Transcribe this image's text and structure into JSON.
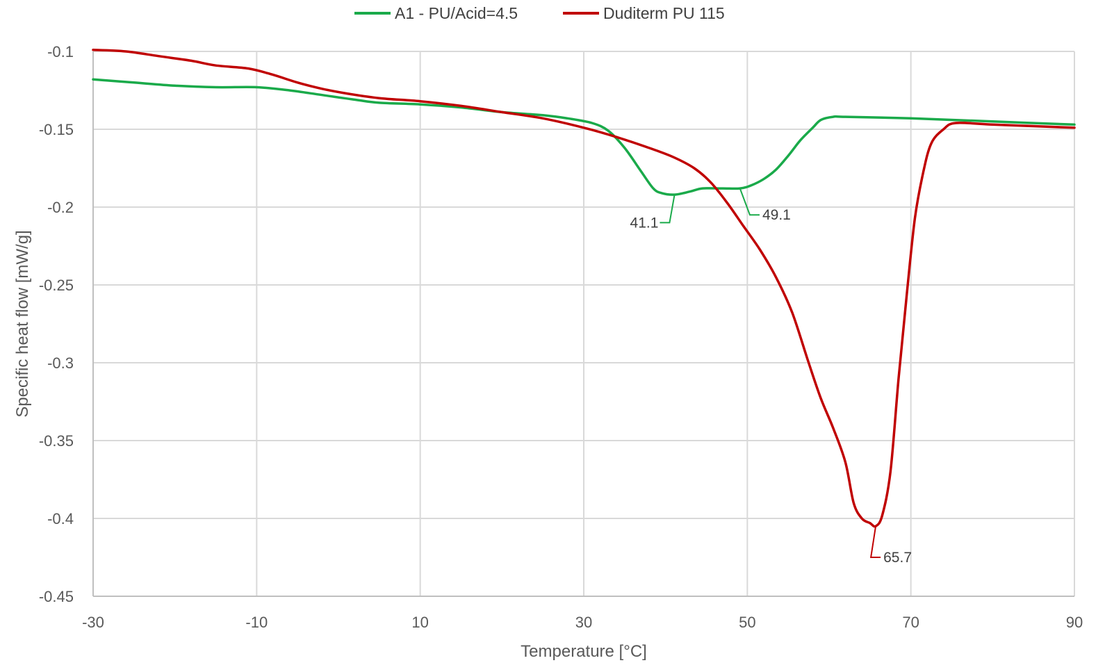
{
  "chart_data": {
    "type": "line",
    "title": "",
    "xlabel": "Temperature [°C]",
    "ylabel": "Specific heat flow [mW/g]",
    "xlim": [
      -30,
      90
    ],
    "ylim": [
      -0.45,
      -0.1
    ],
    "x_ticks": [
      -30,
      -10,
      10,
      30,
      50,
      70,
      90
    ],
    "y_ticks": [
      -0.1,
      -0.15,
      -0.2,
      -0.25,
      -0.3,
      -0.35,
      -0.4,
      -0.45
    ],
    "x_tick_labels": [
      "-30",
      "-10",
      "10",
      "30",
      "50",
      "70",
      "90"
    ],
    "y_tick_labels": [
      "-0.1",
      "-0.15",
      "-0.2",
      "-0.25",
      "-0.3",
      "-0.35",
      "-0.4",
      "-0.45"
    ],
    "grid": true,
    "legend_position": "top",
    "series": [
      {
        "name": "A1 - PU/Acid=4.5",
        "color": "#1aaa4a",
        "points": [
          [
            -30,
            -0.118
          ],
          [
            -25,
            -0.12
          ],
          [
            -20,
            -0.122
          ],
          [
            -15,
            -0.123
          ],
          [
            -10,
            -0.123
          ],
          [
            -6,
            -0.125
          ],
          [
            -2,
            -0.128
          ],
          [
            2,
            -0.131
          ],
          [
            5,
            -0.133
          ],
          [
            10,
            -0.134
          ],
          [
            15,
            -0.136
          ],
          [
            20,
            -0.139
          ],
          [
            25,
            -0.141
          ],
          [
            28,
            -0.143
          ],
          [
            31,
            -0.146
          ],
          [
            33,
            -0.151
          ],
          [
            35,
            -0.162
          ],
          [
            37,
            -0.177
          ],
          [
            38.5,
            -0.188
          ],
          [
            39.5,
            -0.191
          ],
          [
            41.1,
            -0.192
          ],
          [
            43,
            -0.19
          ],
          [
            44.5,
            -0.188
          ],
          [
            47,
            -0.188
          ],
          [
            49.1,
            -0.188
          ],
          [
            50.5,
            -0.186
          ],
          [
            52,
            -0.182
          ],
          [
            53.5,
            -0.176
          ],
          [
            55,
            -0.167
          ],
          [
            56.5,
            -0.157
          ],
          [
            58,
            -0.149
          ],
          [
            59,
            -0.144
          ],
          [
            60.5,
            -0.142
          ],
          [
            62,
            -0.142
          ],
          [
            70,
            -0.143
          ],
          [
            80,
            -0.145
          ],
          [
            90,
            -0.147
          ]
        ]
      },
      {
        "name": "Duditerm PU 115",
        "color": "#c00000",
        "points": [
          [
            -30,
            -0.099
          ],
          [
            -26,
            -0.1
          ],
          [
            -22,
            -0.103
          ],
          [
            -18,
            -0.106
          ],
          [
            -15,
            -0.109
          ],
          [
            -11,
            -0.111
          ],
          [
            -8,
            -0.115
          ],
          [
            -5,
            -0.12
          ],
          [
            -2,
            -0.124
          ],
          [
            1,
            -0.127
          ],
          [
            5,
            -0.13
          ],
          [
            10,
            -0.132
          ],
          [
            15,
            -0.135
          ],
          [
            20,
            -0.139
          ],
          [
            25,
            -0.143
          ],
          [
            30,
            -0.149
          ],
          [
            34,
            -0.155
          ],
          [
            38,
            -0.162
          ],
          [
            41,
            -0.168
          ],
          [
            43.5,
            -0.175
          ],
          [
            45.5,
            -0.184
          ],
          [
            47.5,
            -0.197
          ],
          [
            49.5,
            -0.212
          ],
          [
            51.5,
            -0.227
          ],
          [
            53.5,
            -0.245
          ],
          [
            55.5,
            -0.268
          ],
          [
            57.5,
            -0.3
          ],
          [
            59,
            -0.323
          ],
          [
            60.5,
            -0.342
          ],
          [
            62,
            -0.364
          ],
          [
            63,
            -0.39
          ],
          [
            64,
            -0.4
          ],
          [
            65,
            -0.403
          ],
          [
            65.7,
            -0.405
          ],
          [
            66.5,
            -0.398
          ],
          [
            67.5,
            -0.37
          ],
          [
            68.5,
            -0.31
          ],
          [
            69.5,
            -0.256
          ],
          [
            70.5,
            -0.207
          ],
          [
            71.5,
            -0.178
          ],
          [
            72.5,
            -0.159
          ],
          [
            74,
            -0.15
          ],
          [
            75.5,
            -0.146
          ],
          [
            80,
            -0.147
          ],
          [
            85,
            -0.148
          ],
          [
            90,
            -0.149
          ]
        ]
      }
    ],
    "annotations": [
      {
        "text": "41.1",
        "series": 0,
        "x": 41.1,
        "y": -0.192,
        "label_x": 39.3,
        "label_y": -0.21,
        "anchor": "end"
      },
      {
        "text": "49.1",
        "series": 0,
        "x": 49.1,
        "y": -0.188,
        "label_x": 51.5,
        "label_y": -0.205,
        "anchor": "start"
      },
      {
        "text": "65.7",
        "series": 1,
        "x": 65.7,
        "y": -0.405,
        "label_x": 66.3,
        "label_y": -0.425,
        "anchor": "start"
      }
    ]
  }
}
